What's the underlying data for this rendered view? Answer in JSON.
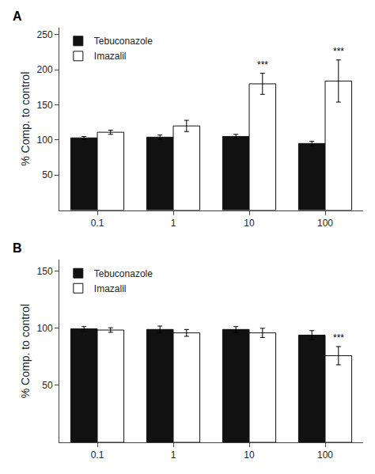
{
  "chart_data": [
    {
      "type": "bar",
      "title": "A",
      "categories": [
        "0.1",
        "1",
        "10",
        "100"
      ],
      "series": [
        {
          "name": "Tebuconazole",
          "color": "#111111",
          "values": [
            103,
            104,
            105,
            95
          ],
          "errors": [
            2,
            3,
            3,
            3
          ]
        },
        {
          "name": "Imazalil",
          "color": "#ffffff",
          "values": [
            111,
            120,
            180,
            184
          ],
          "errors": [
            3,
            8,
            15,
            30
          ]
        }
      ],
      "ylabel": "% Comp. to control",
      "ylim": [
        0,
        260
      ],
      "yticks": [
        50,
        100,
        150,
        200,
        250
      ],
      "grid": false,
      "legend": "upper left",
      "annotations": [
        {
          "text": "***",
          "category": "10",
          "series": "Imazalil"
        },
        {
          "text": "***",
          "category": "100",
          "series": "Imazalil"
        }
      ]
    },
    {
      "type": "bar",
      "title": "B",
      "categories": [
        "0.1",
        "1",
        "10",
        "100"
      ],
      "series": [
        {
          "name": "Tebuconazole",
          "color": "#111111",
          "values": [
            99.5,
            99,
            99,
            94
          ],
          "errors": [
            2,
            3,
            2.5,
            4
          ]
        },
        {
          "name": "Imazalil",
          "color": "#ffffff",
          "values": [
            98.5,
            96,
            96,
            76
          ],
          "errors": [
            2,
            3,
            4,
            8
          ]
        }
      ],
      "ylabel": "% Comp. to control",
      "ylim": [
        0,
        160
      ],
      "yticks": [
        50,
        100,
        150
      ],
      "grid": false,
      "legend": "upper left",
      "annotations": [
        {
          "text": "***",
          "category": "100",
          "series": "Imazalil"
        }
      ]
    }
  ]
}
